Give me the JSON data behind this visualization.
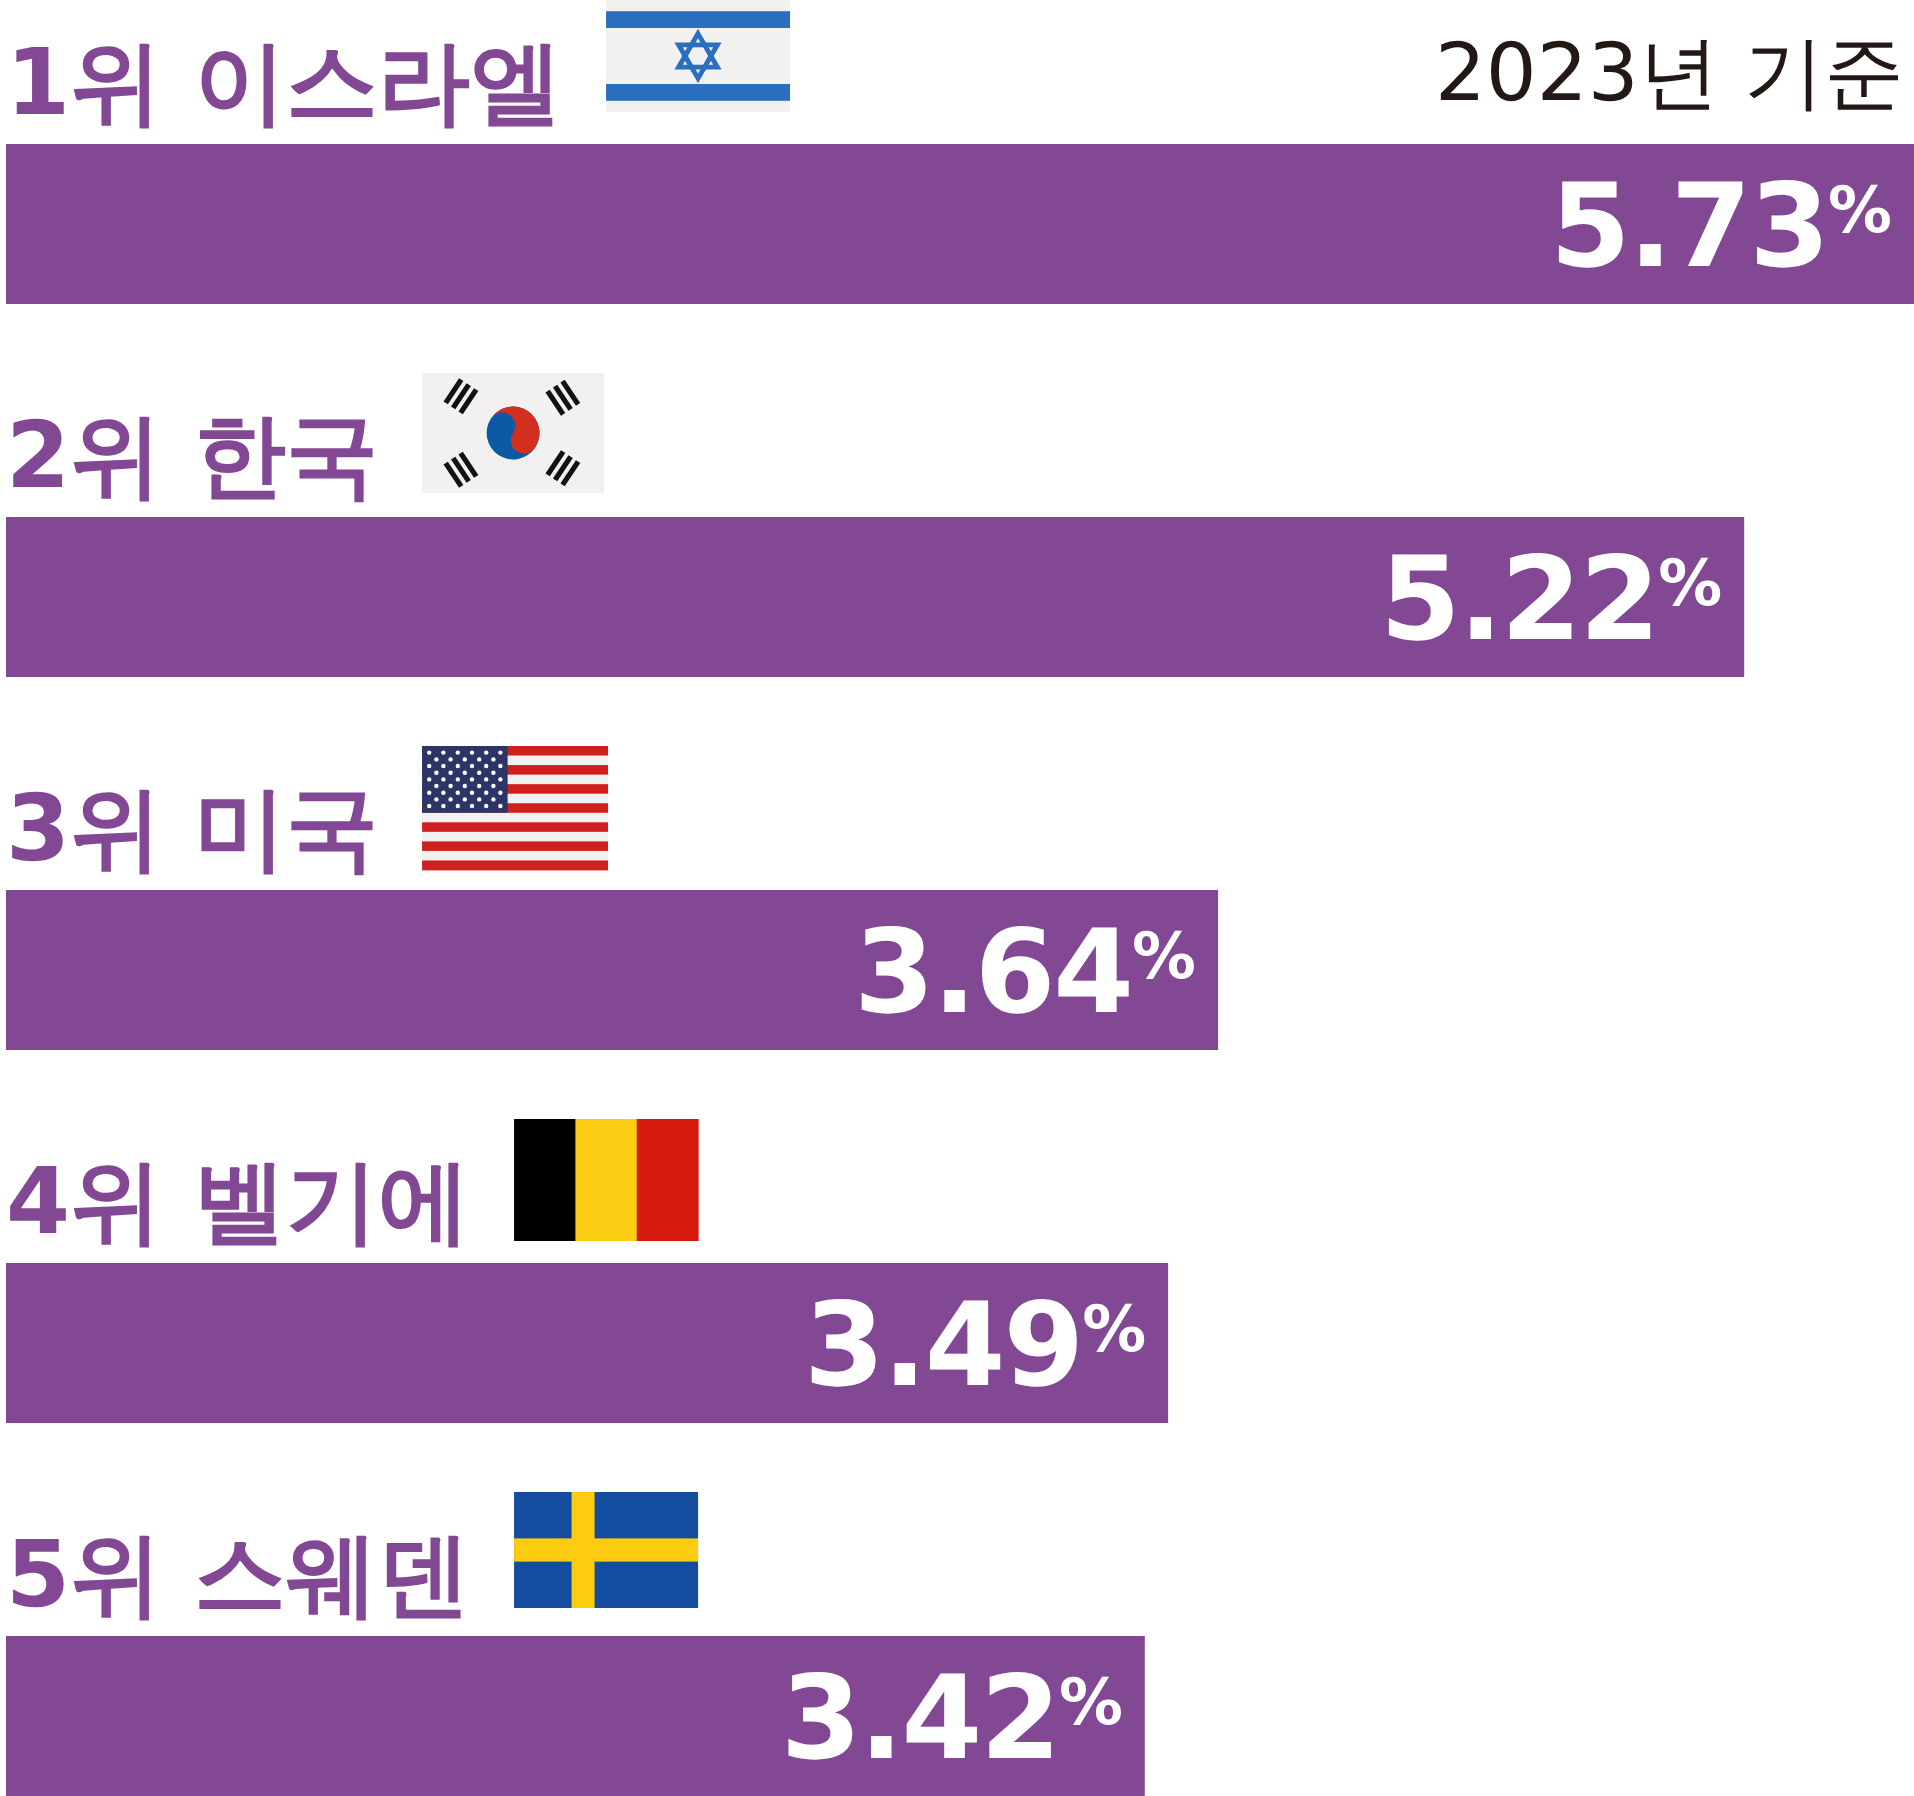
{
  "chart_data": {
    "type": "bar",
    "orientation": "horizontal",
    "categories": [
      "1위 이스라엘",
      "2위 한국",
      "3위 미국",
      "4위 벨기에",
      "5위 스웨덴"
    ],
    "values": [
      5.73,
      5.22,
      3.64,
      3.49,
      3.42
    ],
    "color": "#824893",
    "value_labels": [
      "5.73$^{%}$",
      "5.22$^{%}$",
      "3.64$^{%}$",
      "3.49$^{%}$",
      "3.42$^{%}$"
    ],
    "annotations": [
      "2023년 기준"
    ]
  }
}
